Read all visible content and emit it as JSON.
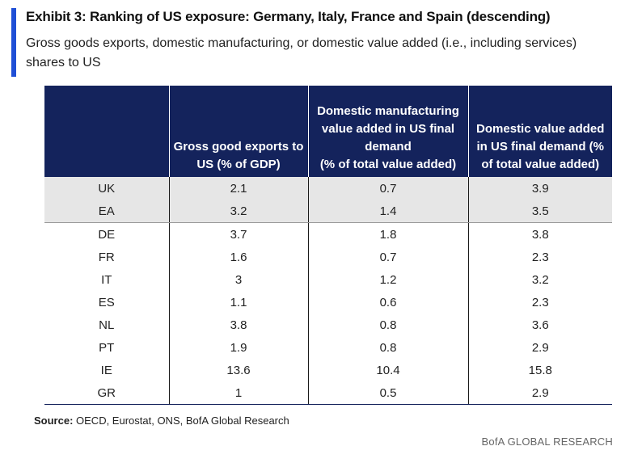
{
  "exhibit": {
    "title": "Exhibit 3: Ranking of US exposure: Germany, Italy, France and Spain (descending)",
    "subtitle": "Gross goods exports, domestic manufacturing, or domestic value added (i.e., including services) shares to US",
    "accent_color": "#1f4fd6",
    "header_color": "#14235c",
    "shaded_row_color": "#e6e6e6"
  },
  "chart_data": {
    "type": "table",
    "columns": [
      "",
      "Gross good exports to US (% of GDP)",
      "Domestic manufacturing value added in US final demand (% of total value added)",
      "Domestic value added in US final demand (% of total value added)"
    ],
    "header_lines": [
      [],
      [
        "Gross good exports to",
        "US (% of GDP)"
      ],
      [
        "Domestic manufacturing",
        "value added in US final",
        "demand",
        "(% of total value added)"
      ],
      [
        "Domestic value added",
        "in US final demand (%",
        "of total value added)"
      ]
    ],
    "rows": [
      {
        "country": "UK",
        "gross_exports": "2.1",
        "manufacturing_va": "0.7",
        "domestic_va": "3.9"
      },
      {
        "country": "EA",
        "gross_exports": "3.2",
        "manufacturing_va": "1.4",
        "domestic_va": "3.5"
      },
      {
        "country": "DE",
        "gross_exports": "3.7",
        "manufacturing_va": "1.8",
        "domestic_va": "3.8"
      },
      {
        "country": "FR",
        "gross_exports": "1.6",
        "manufacturing_va": "0.7",
        "domestic_va": "2.3"
      },
      {
        "country": "IT",
        "gross_exports": "3",
        "manufacturing_va": "1.2",
        "domestic_va": "3.2"
      },
      {
        "country": "ES",
        "gross_exports": "1.1",
        "manufacturing_va": "0.6",
        "domestic_va": "2.3"
      },
      {
        "country": "NL",
        "gross_exports": "3.8",
        "manufacturing_va": "0.8",
        "domestic_va": "3.6"
      },
      {
        "country": "PT",
        "gross_exports": "1.9",
        "manufacturing_va": "0.8",
        "domestic_va": "2.9"
      },
      {
        "country": "IE",
        "gross_exports": "13.6",
        "manufacturing_va": "10.4",
        "domestic_va": "15.8"
      },
      {
        "country": "GR",
        "gross_exports": "1",
        "manufacturing_va": "0.5",
        "domestic_va": "2.9"
      }
    ],
    "shaded_rows": [
      "UK",
      "EA"
    ]
  },
  "footer": {
    "source_label": "Source:",
    "source_text": " OECD, Eurostat, ONS, BofA Global Research",
    "credit": "BofA GLOBAL RESEARCH"
  }
}
